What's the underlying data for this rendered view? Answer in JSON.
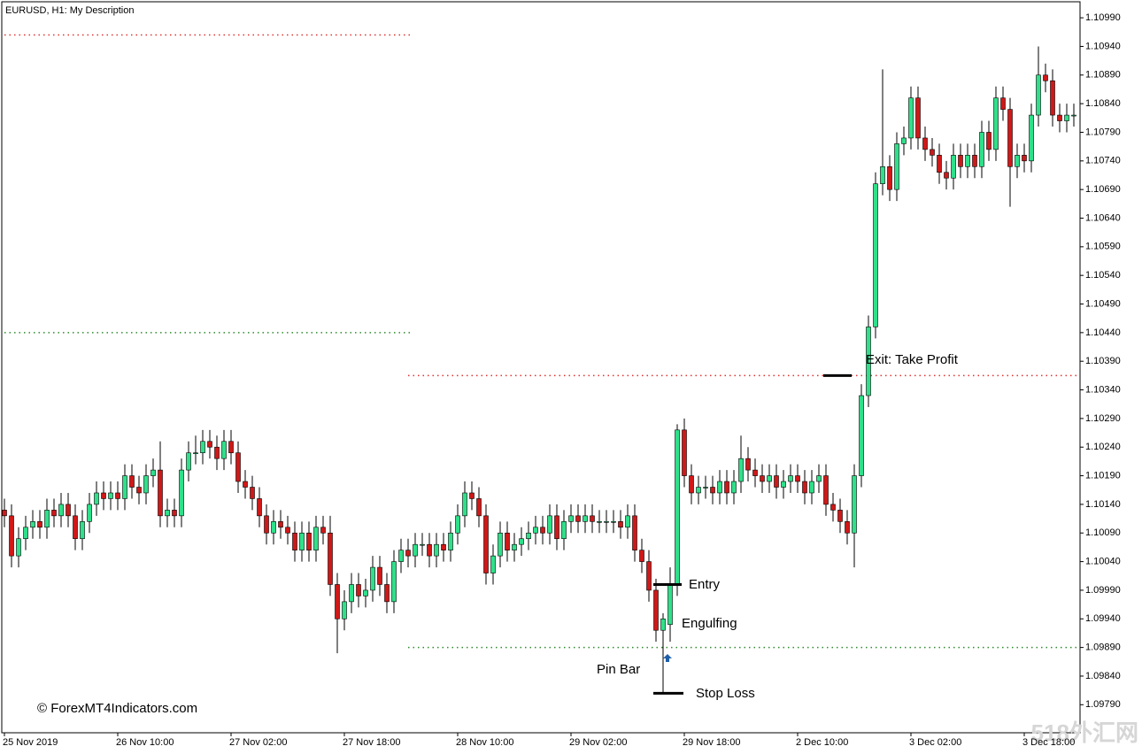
{
  "chart_data": {
    "type": "candlestick",
    "title": "EURUSD, H1:  My Description",
    "watermark": "© ForexMT4Indicators.com",
    "corner_mark": "518外汇网",
    "up_color": "#2fe08a",
    "down_color": "#d01818",
    "categories": [
      "25 Nov 2019",
      null,
      null,
      null,
      null,
      null,
      null,
      null,
      null,
      null,
      null,
      null,
      null,
      null,
      null,
      null,
      "26 Nov 10:00",
      null,
      null,
      null,
      null,
      null,
      null,
      null,
      null,
      null,
      null,
      null,
      null,
      null,
      null,
      null,
      "27 Nov 02:00",
      null,
      null,
      null,
      null,
      null,
      null,
      null,
      null,
      null,
      null,
      null,
      null,
      null,
      null,
      null,
      "27 Nov 18:00",
      null,
      null,
      null,
      null,
      null,
      null,
      null,
      null,
      null,
      null,
      null,
      null,
      null,
      null,
      null,
      "28 Nov 10:00",
      null,
      null,
      null,
      null,
      null,
      null,
      null,
      null,
      null,
      null,
      null,
      null,
      null,
      null,
      null,
      "29 Nov 02:00",
      null,
      null,
      null,
      null,
      null,
      null,
      null,
      null,
      null,
      null,
      null,
      null,
      null,
      null,
      null,
      "29 Nov 18:00",
      null,
      null,
      null,
      null,
      null,
      null,
      null,
      null,
      null,
      null,
      null,
      null,
      null,
      null,
      null,
      "2 Dec 10:00",
      null,
      null,
      null,
      null,
      null,
      null,
      null,
      null,
      null,
      null,
      null,
      null,
      null,
      null,
      null,
      "3 Dec 02:00",
      null,
      null,
      null,
      null,
      null,
      null,
      null,
      null,
      null,
      null,
      null,
      null,
      null,
      null,
      null,
      "3 Dec 18:00",
      null,
      null,
      null,
      null,
      null,
      null,
      null
    ],
    "open": [
      1.1013,
      1.1012,
      1.1005,
      1.1008,
      1.101,
      1.1011,
      1.101,
      1.1013,
      1.1012,
      1.1014,
      1.1012,
      1.1008,
      1.1011,
      1.1014,
      1.1016,
      1.1015,
      1.1016,
      1.1015,
      1.1019,
      1.1017,
      1.1016,
      1.1019,
      1.102,
      1.1012,
      1.1013,
      1.1012,
      1.102,
      1.1023,
      1.1023,
      1.1025,
      1.1024,
      1.1022,
      1.1025,
      1.1023,
      1.1018,
      1.1017,
      1.1015,
      1.1012,
      1.1009,
      1.1011,
      1.101,
      1.1009,
      1.1006,
      1.1009,
      1.1006,
      1.101,
      1.1009,
      1.1,
      1.0994,
      1.0997,
      1.1,
      1.0998,
      1.0999,
      1.1003,
      1.1,
      1.0997,
      1.1004,
      1.1006,
      1.1005,
      1.1007,
      1.1007,
      1.1005,
      1.1007,
      1.1006,
      1.1009,
      1.1012,
      1.1016,
      1.1015,
      1.1012,
      1.1002,
      1.1005,
      1.1009,
      1.1006,
      1.1007,
      1.1008,
      1.1009,
      1.101,
      1.1009,
      1.1012,
      1.1008,
      1.1011,
      1.1012,
      1.1011,
      1.1012,
      1.1011,
      1.1011,
      1.1011,
      1.1011,
      1.101,
      1.1012,
      1.1006,
      1.1004,
      1.0999,
      1.0992,
      1.0993,
      1.1,
      1.1027,
      1.1019,
      1.1016,
      1.1017,
      1.1017,
      1.1016,
      1.1018,
      1.1016,
      1.1018,
      1.1022,
      1.102,
      1.1019,
      1.1018,
      1.1019,
      1.1017,
      1.1018,
      1.1019,
      1.1018,
      1.1016,
      1.1018,
      1.1019,
      1.1014,
      1.1013,
      1.1011,
      1.1009,
      1.1019,
      1.1033,
      1.1045,
      1.107,
      1.1073,
      1.1069,
      1.1077,
      1.1078,
      1.1085,
      1.1078,
      1.1076,
      1.1075,
      1.1072,
      1.1071,
      1.1075,
      1.1073,
      1.1075,
      1.1073,
      1.1079,
      1.1076,
      1.1085,
      1.1083,
      1.1073,
      1.1075,
      1.1074,
      1.1082,
      1.1089,
      1.1088,
      1.1082,
      1.1081,
      1.1082
    ],
    "high": [
      1.1015,
      1.1014,
      1.101,
      1.1012,
      1.1013,
      1.1013,
      1.1015,
      1.1015,
      1.1016,
      1.1016,
      1.1014,
      1.1013,
      1.1016,
      1.1018,
      1.1018,
      1.1018,
      1.1018,
      1.1021,
      1.1021,
      1.1019,
      1.1021,
      1.1022,
      1.1025,
      1.1015,
      1.1015,
      1.1022,
      1.1025,
      1.1026,
      1.1027,
      1.1027,
      1.1026,
      1.1027,
      1.1027,
      1.1025,
      1.102,
      1.1019,
      1.1017,
      1.1014,
      1.1013,
      1.1013,
      1.1012,
      1.1011,
      1.1011,
      1.1011,
      1.1012,
      1.1012,
      1.1012,
      1.1002,
      1.0999,
      1.1002,
      1.1002,
      1.1001,
      1.1005,
      1.1005,
      1.1002,
      1.1006,
      1.1008,
      1.1008,
      1.1009,
      1.1009,
      1.1009,
      1.1009,
      1.1009,
      1.1011,
      1.1014,
      1.1018,
      1.1018,
      1.1017,
      1.1014,
      1.1007,
      1.1011,
      1.1011,
      1.1009,
      1.101,
      1.1011,
      1.1012,
      1.1012,
      1.1014,
      1.1014,
      1.1013,
      1.1014,
      1.1014,
      1.1014,
      1.1014,
      1.1013,
      1.1013,
      1.1013,
      1.1013,
      1.1014,
      1.1014,
      1.1008,
      1.1006,
      1.1001,
      1.0995,
      1.1003,
      1.1028,
      1.1029,
      1.1021,
      1.1019,
      1.1019,
      1.1019,
      1.102,
      1.102,
      1.102,
      1.1026,
      1.1024,
      1.1022,
      1.1021,
      1.1021,
      1.1021,
      1.102,
      1.1021,
      1.1021,
      1.102,
      1.102,
      1.1021,
      1.1021,
      1.1016,
      1.1015,
      1.1013,
      1.1021,
      1.1035,
      1.1047,
      1.1072,
      1.109,
      1.1075,
      1.1079,
      1.108,
      1.1087,
      1.1087,
      1.108,
      1.1078,
      1.1077,
      1.1074,
      1.1077,
      1.1077,
      1.1077,
      1.1077,
      1.1081,
      1.1081,
      1.1087,
      1.1087,
      1.1085,
      1.1077,
      1.1077,
      1.1084,
      1.1094,
      1.1091,
      1.109,
      1.1084,
      1.1084,
      1.1084
    ],
    "low": [
      1.101,
      1.1003,
      1.1003,
      1.1006,
      1.1008,
      1.1008,
      1.1008,
      1.101,
      1.101,
      1.101,
      1.1006,
      1.1006,
      1.1009,
      1.1012,
      1.1013,
      1.1013,
      1.1013,
      1.1013,
      1.1015,
      1.1014,
      1.1014,
      1.1017,
      1.101,
      1.101,
      1.101,
      1.101,
      1.1018,
      1.1021,
      1.1021,
      1.1022,
      1.102,
      1.102,
      1.1021,
      1.1016,
      1.1015,
      1.1013,
      1.101,
      1.1007,
      1.1007,
      1.1008,
      1.1007,
      1.1004,
      1.1004,
      1.1004,
      1.1004,
      1.1007,
      1.0998,
      1.0988,
      1.0992,
      1.0995,
      1.0996,
      1.0996,
      1.0997,
      1.0998,
      1.0995,
      1.0995,
      1.1002,
      1.1003,
      1.1003,
      1.1005,
      1.1003,
      1.1003,
      1.1004,
      1.1004,
      1.1007,
      1.101,
      1.1013,
      1.101,
      1.1,
      1.1,
      1.1003,
      1.1004,
      1.1004,
      1.1005,
      1.1006,
      1.1007,
      1.1007,
      1.1007,
      1.1006,
      1.1006,
      1.1009,
      1.1009,
      1.1009,
      1.1009,
      1.1009,
      1.1009,
      1.1009,
      1.1008,
      1.1008,
      1.1004,
      1.1002,
      1.0997,
      1.099,
      1.0981,
      1.099,
      1.0998,
      1.1017,
      1.1014,
      1.1014,
      1.1015,
      1.1014,
      1.1014,
      1.1014,
      1.1014,
      1.1016,
      1.1018,
      1.1017,
      1.1016,
      1.1016,
      1.1015,
      1.1015,
      1.1016,
      1.1016,
      1.1014,
      1.1014,
      1.1016,
      1.1012,
      1.1011,
      1.1009,
      1.1007,
      1.1003,
      1.1017,
      1.1031,
      1.1043,
      1.1068,
      1.1067,
      1.1067,
      1.1075,
      1.1076,
      1.1076,
      1.1074,
      1.1073,
      1.107,
      1.1069,
      1.1069,
      1.1071,
      1.1071,
      1.1071,
      1.1071,
      1.1074,
      1.1074,
      1.1081,
      1.1066,
      1.1071,
      1.1072,
      1.1072,
      1.108,
      1.1086,
      1.108,
      1.1079,
      1.1079,
      1.108
    ],
    "close": [
      1.1012,
      1.1005,
      1.1008,
      1.101,
      1.1011,
      1.101,
      1.1013,
      1.1012,
      1.1014,
      1.1012,
      1.1008,
      1.1011,
      1.1014,
      1.1016,
      1.1015,
      1.1016,
      1.1015,
      1.1019,
      1.1017,
      1.1016,
      1.1019,
      1.102,
      1.1012,
      1.1013,
      1.1012,
      1.102,
      1.1023,
      1.1023,
      1.1025,
      1.1024,
      1.1022,
      1.1025,
      1.1023,
      1.1018,
      1.1017,
      1.1015,
      1.1012,
      1.1009,
      1.1011,
      1.101,
      1.1009,
      1.1006,
      1.1009,
      1.1006,
      1.101,
      1.1009,
      1.1,
      1.0994,
      1.0997,
      1.1,
      1.0998,
      1.0999,
      1.1003,
      1.1,
      1.0997,
      1.1004,
      1.1006,
      1.1005,
      1.1007,
      1.1007,
      1.1005,
      1.1007,
      1.1006,
      1.1009,
      1.1012,
      1.1016,
      1.1015,
      1.1012,
      1.1002,
      1.1005,
      1.1009,
      1.1006,
      1.1007,
      1.1008,
      1.1009,
      1.101,
      1.1009,
      1.1012,
      1.1008,
      1.1011,
      1.1012,
      1.1011,
      1.1012,
      1.1011,
      1.1011,
      1.1011,
      1.1011,
      1.101,
      1.1012,
      1.1006,
      1.1004,
      1.0999,
      1.0992,
      1.0994,
      1.1,
      1.1027,
      1.1019,
      1.1016,
      1.1017,
      1.1017,
      1.1016,
      1.1018,
      1.1016,
      1.1018,
      1.1022,
      1.102,
      1.1019,
      1.1018,
      1.1019,
      1.1017,
      1.1018,
      1.1019,
      1.1018,
      1.1016,
      1.1018,
      1.1019,
      1.1014,
      1.1013,
      1.1011,
      1.1009,
      1.1019,
      1.1033,
      1.1045,
      1.107,
      1.1073,
      1.1069,
      1.1077,
      1.1078,
      1.1085,
      1.1078,
      1.1076,
      1.1075,
      1.1072,
      1.1071,
      1.1075,
      1.1073,
      1.1075,
      1.1073,
      1.1079,
      1.1076,
      1.1085,
      1.1083,
      1.1073,
      1.1075,
      1.1074,
      1.1082,
      1.1089,
      1.1088,
      1.1082,
      1.1081,
      1.1082,
      1.1082
    ],
    "levels": [
      {
        "value": 1.1096,
        "color": "#e03030",
        "start": 0,
        "end": 57
      },
      {
        "value": 1.1044,
        "color": "#2e8b2e",
        "start": 0,
        "end": 57
      },
      {
        "value": 1.10365,
        "color": "#e03030",
        "start": 57,
        "end": 151
      },
      {
        "value": 1.0989,
        "color": "#2e8b2e",
        "start": 57,
        "end": 151
      }
    ],
    "annotations": [
      {
        "text": "Exit: Take Profit",
        "value": 1.10365
      },
      {
        "text": "Entry",
        "value": 1.1
      },
      {
        "text": "Engulfing"
      },
      {
        "text": "Pin Bar"
      },
      {
        "text": "Stop Loss",
        "value": 1.0981
      }
    ],
    "ylim": [
      1.09741,
      1.11018
    ],
    "yticks": [
      {
        "value": 1.1099,
        "label": "1.10990"
      },
      {
        "value": 1.1094,
        "label": "1.10940"
      },
      {
        "value": 1.1089,
        "label": "1.10890"
      },
      {
        "value": 1.1084,
        "label": "1.10840"
      },
      {
        "value": 1.1079,
        "label": "1.10790"
      },
      {
        "value": 1.1074,
        "label": "1.10740"
      },
      {
        "value": 1.1069,
        "label": "1.10690"
      },
      {
        "value": 1.1064,
        "label": "1.10640"
      },
      {
        "value": 1.1059,
        "label": "1.10590"
      },
      {
        "value": 1.1054,
        "label": "1.10540"
      },
      {
        "value": 1.1049,
        "label": "1.10490"
      },
      {
        "value": 1.1044,
        "label": "1.10440"
      },
      {
        "value": 1.1039,
        "label": "1.10390"
      },
      {
        "value": 1.1034,
        "label": "1.10340"
      },
      {
        "value": 1.1029,
        "label": "1.10290"
      },
      {
        "value": 1.1024,
        "label": "1.10240"
      },
      {
        "value": 1.1019,
        "label": "1.10190"
      },
      {
        "value": 1.1014,
        "label": "1.10140"
      },
      {
        "value": 1.1009,
        "label": "1.10090"
      },
      {
        "value": 1.1004,
        "label": "1.10040"
      },
      {
        "value": 1.0999,
        "label": "1.09990"
      },
      {
        "value": 1.0994,
        "label": "1.09940"
      },
      {
        "value": 1.0989,
        "label": "1.09890"
      },
      {
        "value": 1.0984,
        "label": "1.09840"
      },
      {
        "value": 1.0979,
        "label": "1.09790"
      }
    ],
    "grid": false
  }
}
